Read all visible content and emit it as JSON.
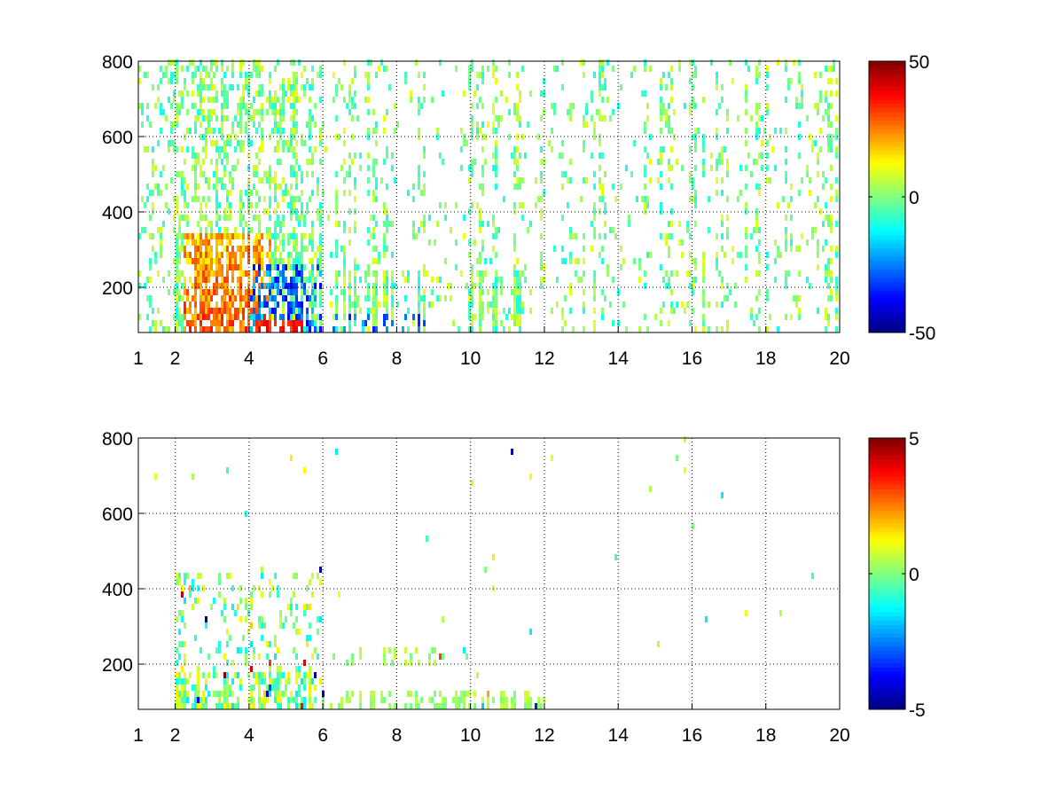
{
  "chart_data": [
    {
      "type": "heatmap",
      "title": "",
      "xlabel": "",
      "ylabel": "",
      "xlim": [
        1,
        20
      ],
      "ylim": [
        80,
        800
      ],
      "xticks": [
        "1",
        "2",
        "4",
        "6",
        "8",
        "10",
        "12",
        "14",
        "16",
        "18",
        "20"
      ],
      "yticks": [
        "200",
        "400",
        "600",
        "800"
      ],
      "grid": true,
      "colormap": "jet",
      "clim": [
        -50,
        50
      ],
      "colorbar_ticks": [
        "50",
        "0",
        "-50"
      ],
      "description_of_values": {
        "dense_region_x": [
          1,
          6
        ],
        "positive_hotspot": {
          "x": [
            2.2,
            4.6
          ],
          "y": [
            80,
            350
          ],
          "value": 30
        },
        "negative_hotspot": {
          "x": [
            4.0,
            6.0
          ],
          "y": [
            80,
            260
          ],
          "value": -30
        },
        "secondary_bands": [
          {
            "x": [
              6.2,
              9.5
            ],
            "y": [
              80,
              250
            ]
          },
          {
            "x": [
              10,
              11.5
            ],
            "y": [
              80,
              250
            ]
          }
        ],
        "sparse_region_x": [
          6,
          20
        ],
        "background_value_range": [
          -12,
          12
        ]
      }
    },
    {
      "type": "heatmap",
      "title": "",
      "xlabel": "",
      "ylabel": "",
      "xlim": [
        1,
        20
      ],
      "ylim": [
        80,
        800
      ],
      "xticks": [
        "1",
        "2",
        "4",
        "6",
        "8",
        "10",
        "12",
        "14",
        "16",
        "18",
        "20"
      ],
      "yticks": [
        "200",
        "400",
        "600",
        "800"
      ],
      "grid": true,
      "colormap": "jet",
      "clim": [
        -5,
        5
      ],
      "colorbar_ticks": [
        "5",
        "0",
        "-5"
      ],
      "description_of_values": {
        "dense_region": {
          "x": [
            2,
            6
          ],
          "y": [
            80,
            450
          ]
        },
        "low_band": {
          "x": [
            6,
            12
          ],
          "y": [
            80,
            130
          ],
          "value": 0.3
        },
        "mid_band": {
          "x": [
            6.2,
            9.5
          ],
          "y": [
            200,
            240
          ],
          "value": 0.3
        },
        "background_value_range": [
          -2,
          2
        ]
      }
    }
  ]
}
